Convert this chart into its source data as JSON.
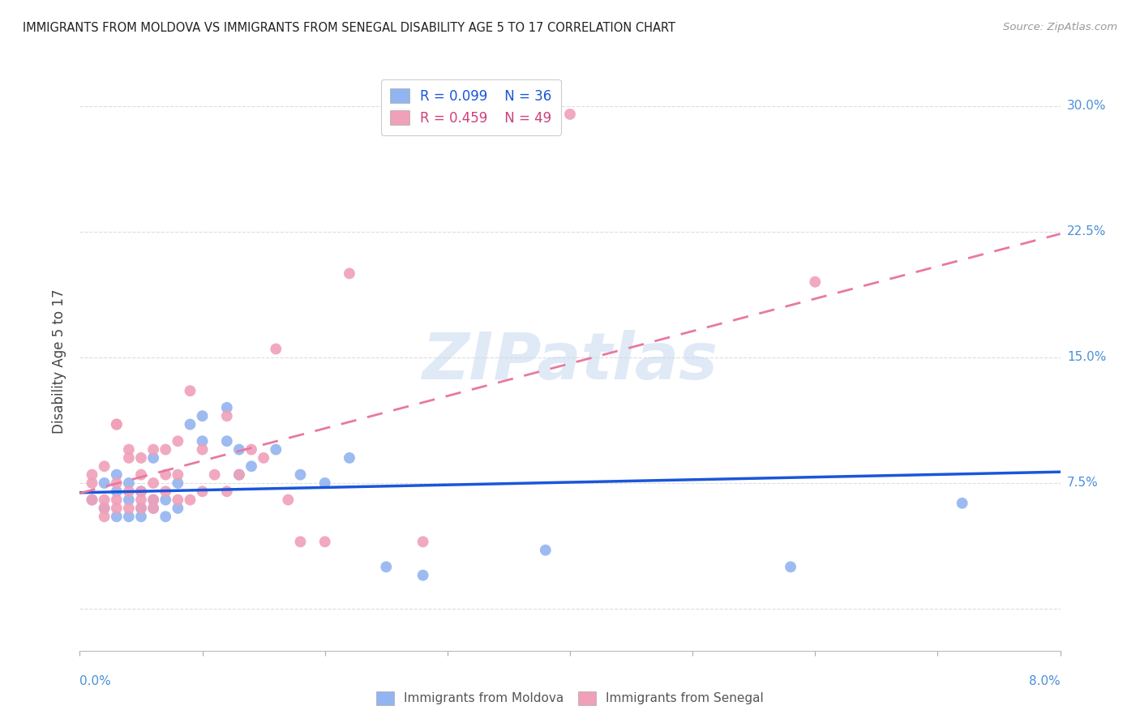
{
  "title": "IMMIGRANTS FROM MOLDOVA VS IMMIGRANTS FROM SENEGAL DISABILITY AGE 5 TO 17 CORRELATION CHART",
  "source": "Source: ZipAtlas.com",
  "ylabel": "Disability Age 5 to 17",
  "xmin": 0.0,
  "xmax": 0.08,
  "ymin": -0.025,
  "ymax": 0.32,
  "moldova_color": "#92b4f0",
  "senegal_color": "#f0a0b8",
  "moldova_R": 0.099,
  "moldova_N": 36,
  "senegal_R": 0.459,
  "senegal_N": 49,
  "moldova_line_color": "#1a56db",
  "senegal_line_color": "#e879a0",
  "right_label_color": "#4a90d9",
  "watermark": "ZIPatlas",
  "yticks": [
    0.0,
    0.075,
    0.15,
    0.225,
    0.3
  ],
  "ytick_labels": [
    "",
    "7.5%",
    "15.0%",
    "22.5%",
    "30.0%"
  ],
  "xticks": [
    0.0,
    0.01,
    0.02,
    0.03,
    0.04,
    0.05,
    0.06,
    0.07,
    0.08
  ],
  "moldova_scatter_x": [
    0.001,
    0.002,
    0.002,
    0.003,
    0.003,
    0.003,
    0.004,
    0.004,
    0.004,
    0.005,
    0.005,
    0.005,
    0.006,
    0.006,
    0.006,
    0.007,
    0.007,
    0.008,
    0.008,
    0.009,
    0.01,
    0.01,
    0.012,
    0.012,
    0.013,
    0.013,
    0.014,
    0.016,
    0.018,
    0.02,
    0.022,
    0.025,
    0.028,
    0.038,
    0.058,
    0.072
  ],
  "moldova_scatter_y": [
    0.065,
    0.06,
    0.075,
    0.055,
    0.07,
    0.08,
    0.055,
    0.065,
    0.075,
    0.055,
    0.06,
    0.07,
    0.06,
    0.065,
    0.09,
    0.055,
    0.065,
    0.06,
    0.075,
    0.11,
    0.1,
    0.115,
    0.1,
    0.12,
    0.08,
    0.095,
    0.085,
    0.095,
    0.08,
    0.075,
    0.09,
    0.025,
    0.02,
    0.035,
    0.025,
    0.063
  ],
  "senegal_scatter_x": [
    0.001,
    0.001,
    0.001,
    0.002,
    0.002,
    0.002,
    0.002,
    0.003,
    0.003,
    0.003,
    0.003,
    0.003,
    0.004,
    0.004,
    0.004,
    0.004,
    0.005,
    0.005,
    0.005,
    0.005,
    0.005,
    0.006,
    0.006,
    0.006,
    0.006,
    0.007,
    0.007,
    0.007,
    0.008,
    0.008,
    0.008,
    0.009,
    0.009,
    0.01,
    0.01,
    0.011,
    0.012,
    0.012,
    0.013,
    0.014,
    0.015,
    0.016,
    0.017,
    0.018,
    0.02,
    0.022,
    0.028,
    0.04,
    0.06
  ],
  "senegal_scatter_y": [
    0.065,
    0.075,
    0.08,
    0.055,
    0.065,
    0.06,
    0.085,
    0.06,
    0.065,
    0.075,
    0.11,
    0.11,
    0.06,
    0.07,
    0.09,
    0.095,
    0.06,
    0.065,
    0.07,
    0.08,
    0.09,
    0.06,
    0.065,
    0.075,
    0.095,
    0.07,
    0.08,
    0.095,
    0.065,
    0.08,
    0.1,
    0.13,
    0.065,
    0.07,
    0.095,
    0.08,
    0.07,
    0.115,
    0.08,
    0.095,
    0.09,
    0.155,
    0.065,
    0.04,
    0.04,
    0.2,
    0.04,
    0.295,
    0.195
  ]
}
